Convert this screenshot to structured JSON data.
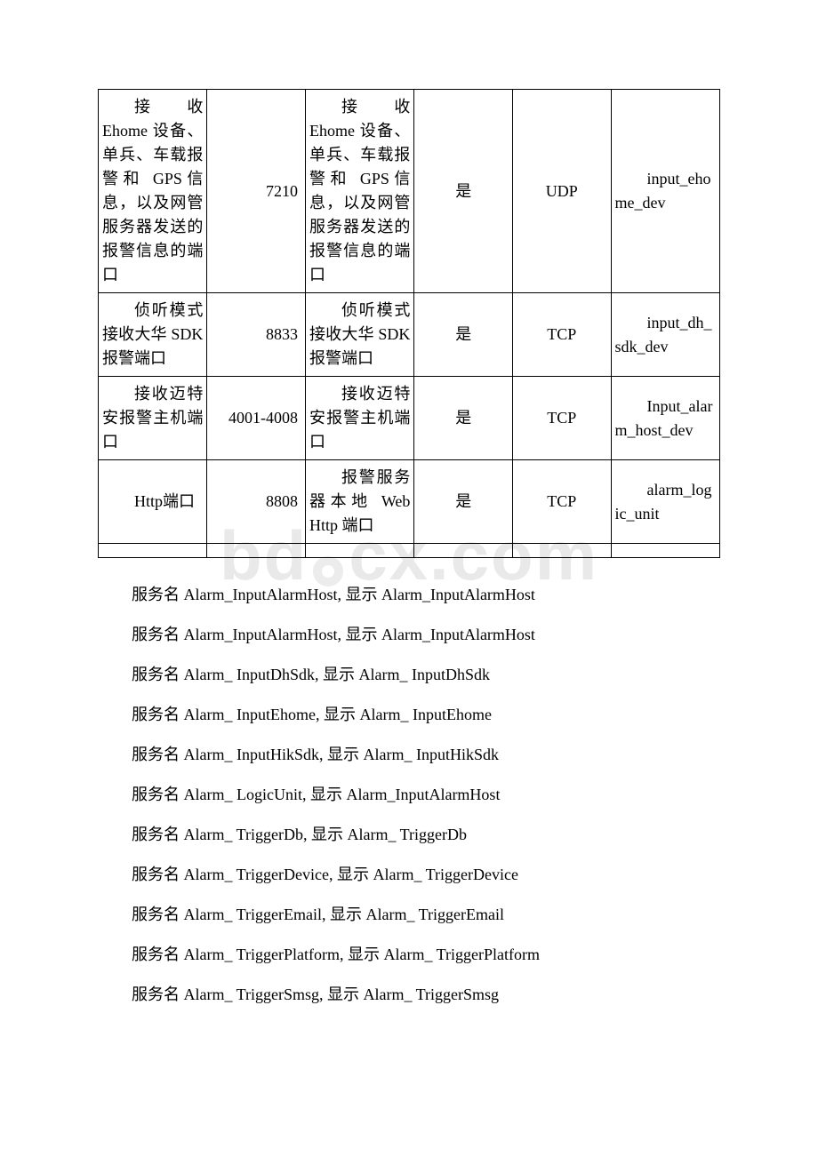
{
  "watermark_text_left": "bd",
  "watermark_text_right": "cx.com",
  "table": {
    "rows": [
      {
        "c1": "接收Ehome 设备、单兵、车载报警和 GPS信息，以及网管服务器发送的报警信息的端口",
        "c2": "7210",
        "c3": "接收Ehome 设备、单兵、车载报警和 GPS信息，以及网管服务器发送的报警信息的端口",
        "c4": "是",
        "c5": "UDP",
        "c6": "input_ehome_dev"
      },
      {
        "c1": "侦听模式接收大华 SDK报警端口",
        "c2": "8833",
        "c3": "侦听模式接收大华 SDK报警端口",
        "c4": "是",
        "c5": "TCP",
        "c6": "input_dh_sdk_dev"
      },
      {
        "c1": "接收迈特安报警主机端口",
        "c2": "4001-4008",
        "c3": "接收迈特安报警主机端口",
        "c4": "是",
        "c5": "TCP",
        "c6": "Input_alarm_host_dev"
      },
      {
        "c1": "Http端口",
        "c2": "8808",
        "c3": "报警服务器本地 Web Http 端口",
        "c4": "是",
        "c5": "TCP",
        "c6": "alarm_logic_unit"
      }
    ]
  },
  "services": [
    "服务名 Alarm_InputAlarmHost, 显示 Alarm_InputAlarmHost",
    "服务名 Alarm_InputAlarmHost, 显示 Alarm_InputAlarmHost",
    "服务名 Alarm_ InputDhSdk, 显示 Alarm_ InputDhSdk",
    "服务名 Alarm_ InputEhome, 显示 Alarm_ InputEhome",
    "服务名 Alarm_ InputHikSdk, 显示 Alarm_ InputHikSdk",
    "服务名 Alarm_ LogicUnit, 显示 Alarm_InputAlarmHost",
    "服务名 Alarm_ TriggerDb, 显示 Alarm_ TriggerDb",
    "服务名 Alarm_ TriggerDevice, 显示 Alarm_ TriggerDevice",
    "服务名 Alarm_ TriggerEmail, 显示 Alarm_ TriggerEmail",
    "服务名 Alarm_ TriggerPlatform, 显示 Alarm_ TriggerPlatform",
    "服务名 Alarm_ TriggerSmsg, 显示 Alarm_ TriggerSmsg"
  ]
}
